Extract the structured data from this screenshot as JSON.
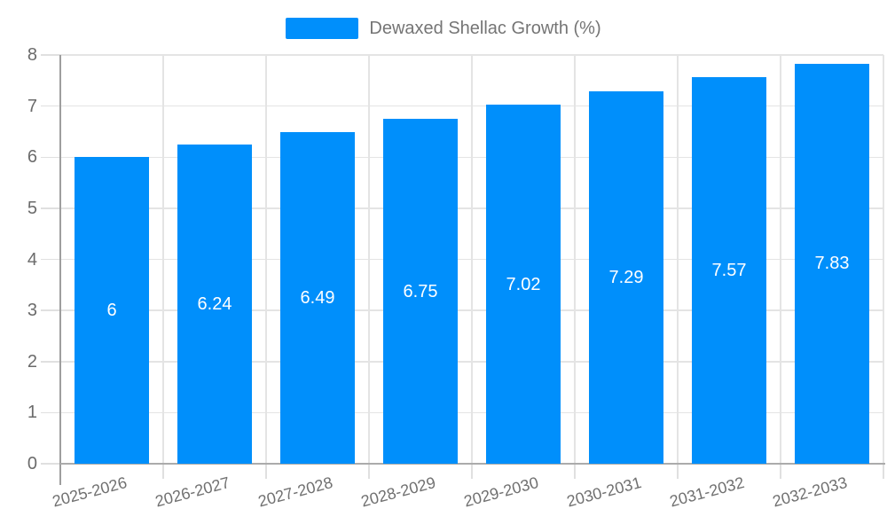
{
  "legend": {
    "label": "Dewaxed Shellac Growth (%)"
  },
  "chart_data": {
    "type": "bar",
    "title": "Dewaxed Shellac Growth (%)",
    "categories": [
      "2025-2026",
      "2026-2027",
      "2027-2028",
      "2028-2029",
      "2029-2030",
      "2030-2031",
      "2031-2032",
      "2032-2033"
    ],
    "series": [
      {
        "name": "Dewaxed Shellac Growth (%)",
        "values": [
          6,
          6.24,
          6.49,
          6.75,
          7.02,
          7.29,
          7.57,
          7.83
        ],
        "value_labels": [
          "6",
          "6.24",
          "6.49",
          "6.75",
          "7.02",
          "7.29",
          "7.57",
          "7.83"
        ]
      }
    ],
    "xlabel": "",
    "ylabel": "",
    "ylim": [
      0,
      8
    ],
    "ytick_step": 1,
    "ytick_labels": [
      "0",
      "1",
      "2",
      "3",
      "4",
      "5",
      "6",
      "7",
      "8"
    ],
    "grid": true,
    "legend_position": "top",
    "style": {
      "bar_color": "#008FFB",
      "data_label_color": "#ffffff",
      "grid_color": "#e4e4e4",
      "tick_color": "#e0e0e0",
      "y_axis_color": "#9e9e9e",
      "x_axis_color": "#ababab",
      "axis_label_color": "#6b6b6b",
      "x_label_color": "#707070",
      "legend_text_color": "#757575"
    }
  }
}
